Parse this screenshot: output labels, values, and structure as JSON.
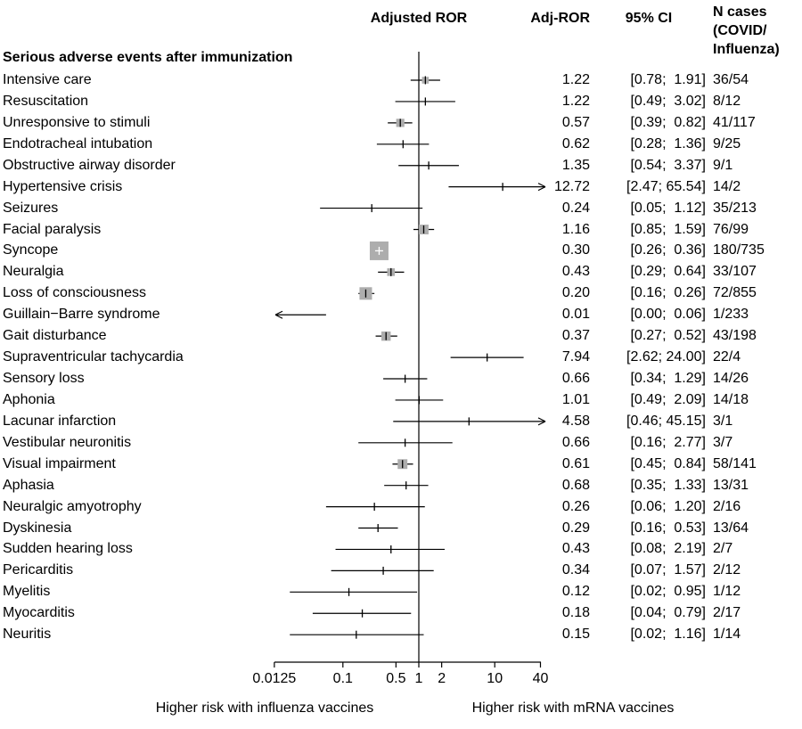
{
  "chart_data": {
    "type": "forest",
    "title": "Adjusted ROR",
    "section_title": "Serious adverse events after immunization",
    "columns": {
      "ror": "Adj-ROR",
      "ci": "95% CI",
      "n_cases_lines": [
        "N cases",
        "(COVID/",
        "Influenza)"
      ]
    },
    "x_scale": "log10",
    "xlim": [
      0.0125,
      40
    ],
    "x_ticks": [
      0.0125,
      0.1,
      0.5,
      1,
      2,
      10,
      40
    ],
    "x_tick_labels": [
      "0.0125",
      "0.1",
      "0.5",
      "1",
      "2",
      "10",
      "40"
    ],
    "reference_line": 1,
    "xlabel_left": "Higher risk with influenza vaccines",
    "xlabel_right": "Higher risk with mRNA vaccines",
    "colors": {
      "marker_square": "#adadad",
      "line": "#000000",
      "text": "#000000",
      "background": "#ffffff"
    },
    "rows": [
      {
        "label": "Intensive care",
        "ror": 1.22,
        "ci_low": 0.78,
        "ci_high": 1.91,
        "ror_text": "1.22",
        "ci_text": "[0.78;  1.91]",
        "n_text": "36/54"
      },
      {
        "label": "Resuscitation",
        "ror": 1.22,
        "ci_low": 0.49,
        "ci_high": 3.02,
        "ror_text": "1.22",
        "ci_text": "[0.49;  3.02]",
        "n_text": "8/12"
      },
      {
        "label": "Unresponsive to stimuli",
        "ror": 0.57,
        "ci_low": 0.39,
        "ci_high": 0.82,
        "ror_text": "0.57",
        "ci_text": "[0.39;  0.82]",
        "n_text": "41/117"
      },
      {
        "label": "Endotracheal intubation",
        "ror": 0.62,
        "ci_low": 0.28,
        "ci_high": 1.36,
        "ror_text": "0.62",
        "ci_text": "[0.28;  1.36]",
        "n_text": "9/25"
      },
      {
        "label": "Obstructive airway disorder",
        "ror": 1.35,
        "ci_low": 0.54,
        "ci_high": 3.37,
        "ror_text": "1.35",
        "ci_text": "[0.54;  3.37]",
        "n_text": "9/1"
      },
      {
        "label": "Hypertensive crisis",
        "ror": 12.72,
        "ci_low": 2.47,
        "ci_high": 65.54,
        "ror_text": "12.72",
        "ci_text": "[2.47; 65.54]",
        "n_text": "14/2"
      },
      {
        "label": "Seizures",
        "ror": 0.24,
        "ci_low": 0.05,
        "ci_high": 1.12,
        "ror_text": "0.24",
        "ci_text": "[0.05;  1.12]",
        "n_text": "35/213"
      },
      {
        "label": "Facial paralysis",
        "ror": 1.16,
        "ci_low": 0.85,
        "ci_high": 1.59,
        "ror_text": "1.16",
        "ci_text": "[0.85;  1.59]",
        "n_text": "76/99"
      },
      {
        "label": "Syncope",
        "ror": 0.3,
        "ci_low": 0.26,
        "ci_high": 0.36,
        "ror_text": "0.30",
        "ci_text": "[0.26;  0.36]",
        "n_text": "180/735"
      },
      {
        "label": "Neuralgia",
        "ror": 0.43,
        "ci_low": 0.29,
        "ci_high": 0.64,
        "ror_text": "0.43",
        "ci_text": "[0.29;  0.64]",
        "n_text": "33/107"
      },
      {
        "label": "Loss of consciousness",
        "ror": 0.2,
        "ci_low": 0.16,
        "ci_high": 0.26,
        "ror_text": "0.20",
        "ci_text": "[0.16;  0.26]",
        "n_text": "72/855"
      },
      {
        "label": "Guillain−Barre syndrome",
        "ror": 0.01,
        "ci_low": 0.0,
        "ci_high": 0.06,
        "ror_text": "0.01",
        "ci_text": "[0.00;  0.06]",
        "n_text": "1/233"
      },
      {
        "label": "Gait disturbance",
        "ror": 0.37,
        "ci_low": 0.27,
        "ci_high": 0.52,
        "ror_text": "0.37",
        "ci_text": "[0.27;  0.52]",
        "n_text": "43/198"
      },
      {
        "label": "Supraventricular tachycardia",
        "ror": 7.94,
        "ci_low": 2.62,
        "ci_high": 24.0,
        "ror_text": "7.94",
        "ci_text": "[2.62; 24.00]",
        "n_text": "22/4"
      },
      {
        "label": "Sensory loss",
        "ror": 0.66,
        "ci_low": 0.34,
        "ci_high": 1.29,
        "ror_text": "0.66",
        "ci_text": "[0.34;  1.29]",
        "n_text": "14/26"
      },
      {
        "label": "Aphonia",
        "ror": 1.01,
        "ci_low": 0.49,
        "ci_high": 2.09,
        "ror_text": "1.01",
        "ci_text": "[0.49;  2.09]",
        "n_text": "14/18"
      },
      {
        "label": "Lacunar infarction",
        "ror": 4.58,
        "ci_low": 0.46,
        "ci_high": 45.15,
        "ror_text": "4.58",
        "ci_text": "[0.46; 45.15]",
        "n_text": "3/1"
      },
      {
        "label": "Vestibular neuronitis",
        "ror": 0.66,
        "ci_low": 0.16,
        "ci_high": 2.77,
        "ror_text": "0.66",
        "ci_text": "[0.16;  2.77]",
        "n_text": "3/7"
      },
      {
        "label": "Visual impairment",
        "ror": 0.61,
        "ci_low": 0.45,
        "ci_high": 0.84,
        "ror_text": "0.61",
        "ci_text": "[0.45;  0.84]",
        "n_text": "58/141"
      },
      {
        "label": "Aphasia",
        "ror": 0.68,
        "ci_low": 0.35,
        "ci_high": 1.33,
        "ror_text": "0.68",
        "ci_text": "[0.35;  1.33]",
        "n_text": "13/31"
      },
      {
        "label": "Neuralgic amyotrophy",
        "ror": 0.26,
        "ci_low": 0.06,
        "ci_high": 1.2,
        "ror_text": "0.26",
        "ci_text": "[0.06;  1.20]",
        "n_text": "2/16"
      },
      {
        "label": "Dyskinesia",
        "ror": 0.29,
        "ci_low": 0.16,
        "ci_high": 0.53,
        "ror_text": "0.29",
        "ci_text": "[0.16;  0.53]",
        "n_text": "13/64"
      },
      {
        "label": "Sudden hearing loss",
        "ror": 0.43,
        "ci_low": 0.08,
        "ci_high": 2.19,
        "ror_text": "0.43",
        "ci_text": "[0.08;  2.19]",
        "n_text": "2/7"
      },
      {
        "label": "Pericarditis",
        "ror": 0.34,
        "ci_low": 0.07,
        "ci_high": 1.57,
        "ror_text": "0.34",
        "ci_text": "[0.07;  1.57]",
        "n_text": "2/12"
      },
      {
        "label": "Myelitis",
        "ror": 0.12,
        "ci_low": 0.02,
        "ci_high": 0.95,
        "ror_text": "0.12",
        "ci_text": "[0.02;  0.95]",
        "n_text": "1/12"
      },
      {
        "label": "Myocarditis",
        "ror": 0.18,
        "ci_low": 0.04,
        "ci_high": 0.79,
        "ror_text": "0.18",
        "ci_text": "[0.04;  0.79]",
        "n_text": "2/17"
      },
      {
        "label": "Neuritis",
        "ror": 0.15,
        "ci_low": 0.02,
        "ci_high": 1.16,
        "ror_text": "0.15",
        "ci_text": "[0.02;  1.16]",
        "n_text": "1/14"
      }
    ]
  }
}
